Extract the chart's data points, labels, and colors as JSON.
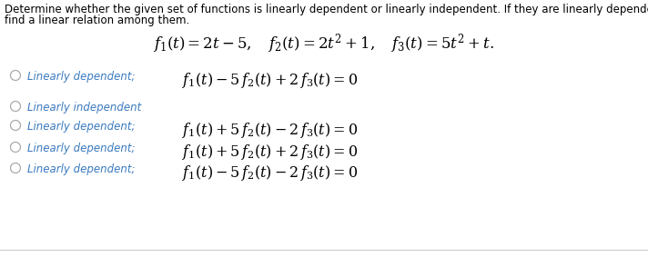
{
  "background_color": "#ffffff",
  "header_text_line1": "Determine whether the given set of functions is linearly dependent or linearly independent. If they are linearly dependent,",
  "header_text_line2": "find a linear relation among them.",
  "functions_line": "$f_1(t) = 2t - 5,\\quad f_2(t) = 2t^2 + 1,\\quad f_3(t) = 5t^2 + t.$",
  "options": [
    {
      "label": "Linearly dependent;",
      "formula": "$f_1(t) - 5\\,f_2(t) + 2\\,f_3(t) = 0$",
      "selected": false
    },
    {
      "label": "Linearly independent",
      "formula": "",
      "selected": false
    },
    {
      "label": "Linearly dependent;",
      "formula": "$f_1(t) + 5\\,f_2(t) - 2\\,f_3(t) = 0$",
      "selected": false
    },
    {
      "label": "Linearly dependent;",
      "formula": "$f_1(t) + 5\\,f_2(t) + 2\\,f_3(t) = 0$",
      "selected": false
    },
    {
      "label": "Linearly dependent;",
      "formula": "$f_1(t) - 5\\,f_2(t) - 2\\,f_3(t) = 0$",
      "selected": false
    }
  ],
  "header_color": "#000000",
  "label_color": "#3a7abf",
  "formula_color": "#000000",
  "circle_edge_color": "#aaaaaa",
  "circle_fill_color": "#ffffff",
  "font_size_header": 8.5,
  "font_size_functions": 12.0,
  "font_size_label": 8.5,
  "font_size_formula": 11.5,
  "bottom_line_color": "#cccccc",
  "fig_width": 7.12,
  "fig_height": 2.83,
  "dpi": 100
}
